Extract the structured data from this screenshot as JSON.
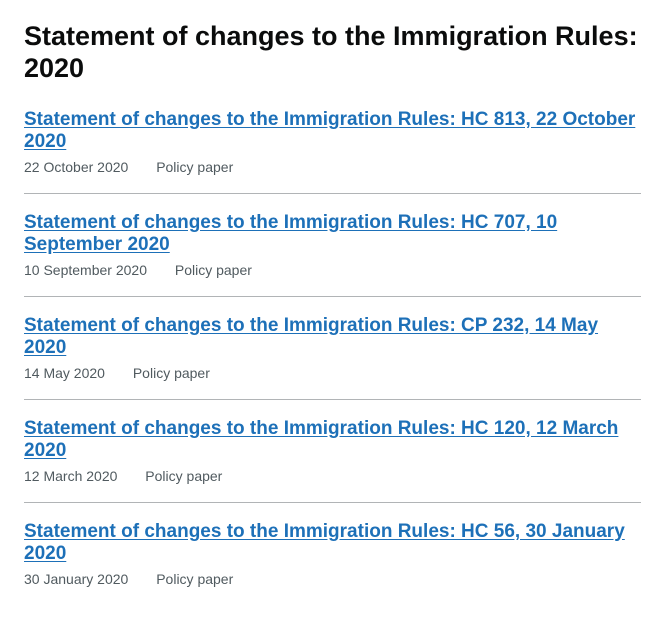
{
  "page_title": "Statement of changes to the Immigration Rules: 2020",
  "documents": [
    {
      "title": "Statement of changes to the Immigration Rules: HC 813, 22 October 2020",
      "date": "22 October 2020",
      "type": "Policy paper"
    },
    {
      "title": "Statement of changes to the Immigration Rules: HC 707, 10 September 2020",
      "date": "10 September 2020",
      "type": "Policy paper"
    },
    {
      "title": "Statement of changes to the Immigration Rules: CP 232, 14 May 2020",
      "date": "14 May 2020",
      "type": "Policy paper"
    },
    {
      "title": "Statement of changes to the Immigration Rules: HC 120, 12 March 2020",
      "date": "12 March 2020",
      "type": "Policy paper"
    },
    {
      "title": "Statement of changes to the Immigration Rules: HC 56, 30 January 2020",
      "date": "30 January 2020",
      "type": "Policy paper"
    }
  ],
  "styling": {
    "link_color": "#1d70b8",
    "text_color": "#0b0c0c",
    "meta_color": "#505a5f",
    "divider_color": "#b1b4b6",
    "background_color": "#ffffff",
    "title_fontsize": 27,
    "doc_title_fontsize": 19,
    "meta_fontsize": 14
  }
}
